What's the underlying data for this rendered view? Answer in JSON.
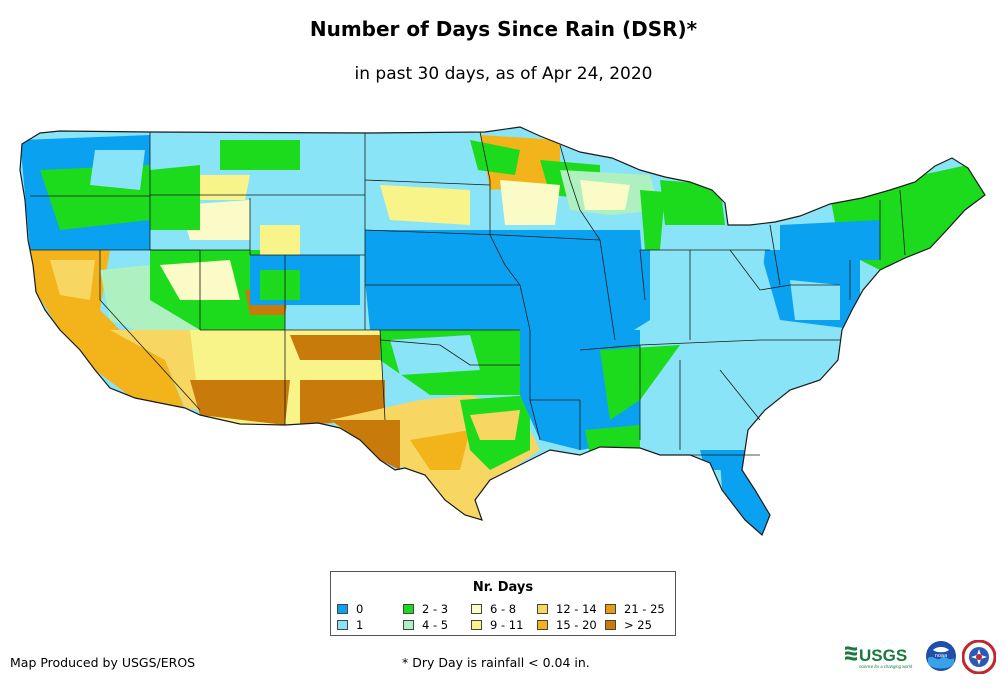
{
  "title": "Number of Days Since Rain (DSR)*",
  "subtitle": "in past 30 days, as of Apr 24, 2020",
  "legend": {
    "title": "Nr. Days",
    "items": [
      {
        "label": "0",
        "color": "#0aa2f0"
      },
      {
        "label": "1",
        "color": "#8ae4f7"
      },
      {
        "label": "2 - 3",
        "color": "#1cdb1c"
      },
      {
        "label": "4 - 5",
        "color": "#aef0c0"
      },
      {
        "label": "6 - 8",
        "color": "#fbfbc8"
      },
      {
        "label": "9 - 11",
        "color": "#f8f48a"
      },
      {
        "label": "12 - 14",
        "color": "#f8d662"
      },
      {
        "label": "15 - 20",
        "color": "#f2b41a"
      },
      {
        "label": "21 - 25",
        "color": "#e89a12"
      },
      {
        "label": "> 25",
        "color": "#c87a0a"
      }
    ]
  },
  "credit": "Map Produced by USGS/EROS",
  "footnote": "* Dry Day is rainfall < 0.04 in.",
  "logos": {
    "usgs_text": "USGS",
    "usgs_tagline": "science for a changing world",
    "noaa_text": "noaa"
  }
}
